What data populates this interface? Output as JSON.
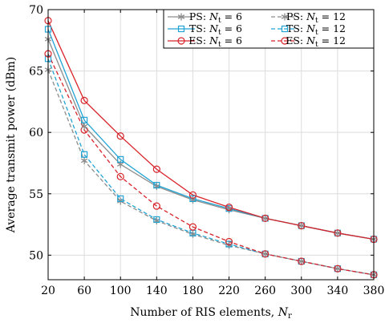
{
  "chart_data": {
    "type": "line",
    "xlabel": "Number of RIS elements, ",
    "xlabel_symbol": "N",
    "xlabel_subscript": "r",
    "ylabel": "Average transmit power (dBm)",
    "x": [
      20,
      60,
      100,
      140,
      180,
      220,
      260,
      300,
      340,
      380
    ],
    "x_ticks": [
      "20",
      "60",
      "100",
      "140",
      "180",
      "220",
      "260",
      "300",
      "340",
      "380"
    ],
    "y_ticks": [
      "50",
      "55",
      "60",
      "65",
      "70"
    ],
    "xlim": [
      20,
      380
    ],
    "ylim": [
      48,
      70
    ],
    "grid": true,
    "legend_position": "top-right",
    "series": [
      {
        "legend_prefix": "PS: ",
        "symbol": "N",
        "subscript": "t",
        "equals": " = 6",
        "color": "#8c8c8c",
        "marker": "star",
        "dash": false,
        "values": [
          67.6,
          60.5,
          57.4,
          55.6,
          54.5,
          53.7,
          53.0,
          52.4,
          51.8,
          51.3
        ]
      },
      {
        "legend_prefix": "TS: ",
        "symbol": "N",
        "subscript": "t",
        "equals": " = 6",
        "color": "#21a3d4",
        "marker": "square",
        "dash": false,
        "values": [
          68.4,
          61.0,
          57.8,
          55.7,
          54.6,
          53.8,
          53.0,
          52.4,
          51.8,
          51.3
        ]
      },
      {
        "legend_prefix": "ES: ",
        "symbol": "N",
        "subscript": "t",
        "equals": " = 6",
        "color": "#d9232a",
        "marker": "circle",
        "dash": false,
        "values": [
          69.1,
          62.6,
          59.7,
          57.0,
          54.9,
          53.9,
          53.0,
          52.4,
          51.8,
          51.3
        ]
      },
      {
        "legend_prefix": "PS: ",
        "symbol": "N",
        "subscript": "t",
        "equals": " = 12",
        "color": "#8c8c8c",
        "marker": "star",
        "dash": true,
        "values": [
          65.1,
          57.7,
          54.4,
          52.8,
          51.7,
          50.8,
          50.1,
          49.5,
          48.9,
          48.4
        ]
      },
      {
        "legend_prefix": "TS: ",
        "symbol": "N",
        "subscript": "t",
        "equals": " = 12",
        "color": "#21a3d4",
        "marker": "square",
        "dash": true,
        "values": [
          66.0,
          58.2,
          54.6,
          52.9,
          51.8,
          50.9,
          50.1,
          49.5,
          48.9,
          48.4
        ]
      },
      {
        "legend_prefix": "ES: ",
        "symbol": "N",
        "subscript": "t",
        "equals": " = 12",
        "color": "#d9232a",
        "marker": "circle",
        "dash": true,
        "values": [
          66.4,
          60.2,
          56.4,
          54.0,
          52.3,
          51.1,
          50.1,
          49.5,
          48.9,
          48.4
        ]
      }
    ]
  }
}
